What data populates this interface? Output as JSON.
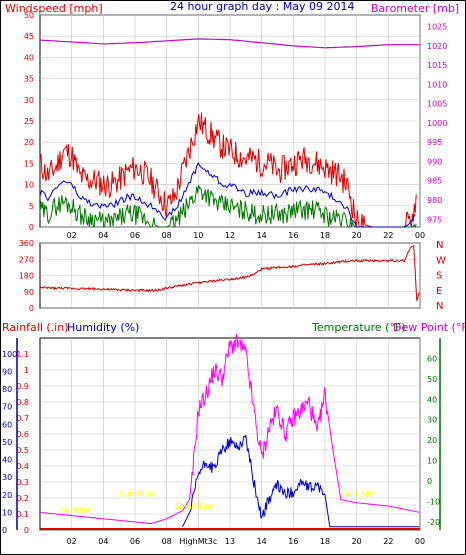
{
  "colors": {
    "background": "#ffffff",
    "plot_bg": "#ffffff",
    "grid": "#c8c8c8",
    "frame": "#000000",
    "windspeed": "#dd0000",
    "avg_wind": "#0000cc",
    "wind_low": "#007700",
    "barometer": "#cc00cc",
    "direction": "#cc0000",
    "rainfall_axis": "#0000aa",
    "humidity_axis": "#0000aa",
    "temperature_axis": "#007700",
    "dewpoint_axis": "#cc00cc",
    "temp_line": "#0000cc",
    "dewpoint_line": "#ff00ff",
    "sun_labels": "#ffff00",
    "title": "#0000aa"
  },
  "chart_data": [
    {
      "type": "line",
      "id": "wind-barometer",
      "title": "24 hour graph day : May 09 2014",
      "left_label": "Windspeed [mph]",
      "right_label": "Barometer [mb]",
      "x_ticks": [
        "02",
        "04",
        "06",
        "08",
        "10",
        "12",
        "14",
        "16",
        "18",
        "20",
        "22",
        "00"
      ],
      "x_range_hours": [
        0,
        24
      ],
      "y_left_ticks": [
        0,
        5,
        10,
        15,
        20,
        25,
        30,
        35,
        40,
        45,
        50
      ],
      "y_left_range": [
        0,
        50
      ],
      "y_right_ticks": [
        975,
        980,
        985,
        990,
        995,
        1000,
        1005,
        1010,
        1015,
        1020,
        1025
      ],
      "y_right_range": [
        973,
        1028
      ],
      "series": [
        {
          "name": "gust",
          "x": [
            0,
            0.5,
            1,
            1.5,
            2,
            2.5,
            3,
            3.5,
            4,
            4.5,
            5,
            5.5,
            6,
            6.5,
            7,
            7.5,
            8,
            8.5,
            9,
            9.5,
            10,
            10.5,
            11,
            11.5,
            12,
            12.5,
            13,
            13.5,
            14,
            14.5,
            15,
            15.5,
            16,
            16.5,
            17,
            17.5,
            18,
            18.5,
            19,
            19.5,
            20,
            21,
            22,
            23,
            23.5,
            23.8
          ],
          "values": [
            15,
            12,
            14,
            18,
            17,
            12,
            11,
            11,
            10,
            10,
            11,
            13,
            14,
            13,
            11,
            8,
            5,
            7,
            13,
            19,
            25,
            23,
            21,
            19,
            18,
            17,
            16,
            16,
            15,
            15,
            13,
            14,
            15,
            16,
            16,
            15,
            14,
            13,
            12,
            9,
            1,
            0,
            0,
            0,
            2,
            8
          ]
        },
        {
          "name": "average",
          "x": [
            0,
            0.5,
            1,
            1.5,
            2,
            2.5,
            3,
            3.5,
            4,
            4.5,
            5,
            5.5,
            6,
            6.5,
            7,
            7.5,
            8,
            8.5,
            9,
            9.5,
            10,
            10.5,
            11,
            11.5,
            12,
            12.5,
            13,
            13.5,
            14,
            14.5,
            15,
            15.5,
            16,
            16.5,
            17,
            17.5,
            18,
            18.5,
            19,
            19.5,
            20,
            21,
            22,
            23,
            23.5,
            23.8
          ],
          "values": [
            8,
            7,
            9,
            11,
            10,
            7,
            6,
            5,
            5,
            5,
            6,
            7,
            7,
            6,
            5,
            4,
            2,
            4,
            7,
            11,
            15,
            13,
            12,
            10,
            10,
            9,
            8,
            8,
            8,
            8,
            7,
            8,
            9,
            9,
            9,
            9,
            8,
            7,
            6,
            4,
            0,
            0,
            0,
            0,
            1,
            4
          ]
        },
        {
          "name": "lull",
          "x": [
            0,
            0.5,
            1,
            1.5,
            2,
            2.5,
            3,
            3.5,
            4,
            4.5,
            5,
            5.5,
            6,
            6.5,
            7,
            7.5,
            8,
            8.5,
            9,
            9.5,
            10,
            10.5,
            11,
            11.5,
            12,
            12.5,
            13,
            13.5,
            14,
            14.5,
            15,
            15.5,
            16,
            16.5,
            17,
            17.5,
            18,
            18.5,
            19,
            19.5,
            20,
            21,
            22,
            23,
            23.5,
            23.8
          ],
          "values": [
            4,
            3,
            5,
            6,
            5,
            3,
            2,
            2,
            1,
            1,
            2,
            3,
            3,
            2,
            1,
            0,
            0,
            1,
            3,
            6,
            9,
            8,
            6,
            5,
            5,
            4,
            4,
            3,
            3,
            3,
            3,
            3,
            4,
            4,
            4,
            4,
            3,
            2,
            2,
            1,
            0,
            0,
            0,
            0,
            0,
            1
          ]
        },
        {
          "name": "barometer",
          "axis": "right",
          "x": [
            0,
            2,
            4,
            6,
            8,
            10,
            12,
            14,
            16,
            18,
            20,
            22,
            24
          ],
          "values": [
            1021.5,
            1021.0,
            1020.5,
            1020.8,
            1021.3,
            1021.8,
            1021.6,
            1020.8,
            1020.0,
            1019.5,
            1019.8,
            1020.3,
            1020.3
          ]
        }
      ]
    },
    {
      "type": "line",
      "id": "wind-direction",
      "x_ticks": [
        "02",
        "04",
        "06",
        "08",
        "10",
        "12",
        "14",
        "16",
        "18",
        "20",
        "22",
        "00"
      ],
      "x_range_hours": [
        0,
        24
      ],
      "y_left_ticks": [
        0,
        90,
        180,
        270,
        360
      ],
      "y_left_range": [
        0,
        360
      ],
      "y_right_ticks": [
        "N",
        "W",
        "S",
        "E",
        "N"
      ],
      "series": [
        {
          "name": "direction",
          "x": [
            0,
            1,
            2,
            3,
            4,
            5,
            6,
            7,
            7.5,
            8,
            9,
            10,
            11,
            12,
            13,
            13.5,
            14,
            15,
            16,
            17,
            18,
            19,
            19.5,
            20,
            21,
            22,
            23,
            23.4,
            23.6,
            23.8,
            24
          ],
          "values": [
            112,
            110,
            108,
            107,
            104,
            100,
            98,
            96,
            100,
            110,
            125,
            140,
            150,
            160,
            170,
            185,
            215,
            225,
            230,
            240,
            245,
            255,
            260,
            262,
            262,
            262,
            262,
            335,
            345,
            40,
            100
          ]
        }
      ]
    },
    {
      "type": "line",
      "id": "rain-humidity-temp",
      "labels": {
        "rainfall": "Rainfall (.in)",
        "humidity": "Humidity (%)",
        "temperature": "Temperature (°F)",
        "dewpoint": "Dew Point (°F)"
      },
      "x_ticks": [
        "02",
        "04",
        "06",
        "08",
        "HighMt3c",
        "13",
        "14",
        "16",
        "18",
        "20",
        "22",
        "00"
      ],
      "x_range_hours": [
        0,
        24
      ],
      "y_rain_ticks": [
        0,
        0.1,
        0.2,
        0.3,
        0.4,
        0.5,
        0.6,
        0.7,
        0.8,
        0.9,
        1,
        1.1
      ],
      "y_rain_range": [
        0,
        1.2
      ],
      "y_humidity_ticks": [
        0,
        10,
        20,
        30,
        40,
        50,
        60,
        70,
        80,
        90,
        100
      ],
      "y_humidity_range": [
        0,
        109
      ],
      "y_temp_ticks": [
        -20,
        -10,
        0,
        10,
        20,
        30,
        40,
        50,
        60
      ],
      "y_temp_range": [
        -24,
        70
      ],
      "annotations": [
        {
          "text": "Sunrise",
          "x": 1.3,
          "y": 0.11
        },
        {
          "text": "Sun Rise",
          "x": 5.0,
          "y": 0.21
        },
        {
          "text": "Solar Rise",
          "x": 8.5,
          "y": 0.13
        },
        {
          "text": "Sun Set",
          "x": 19.1,
          "y": 0.21
        }
      ],
      "series": [
        {
          "name": "dewpoint",
          "axis": "rain",
          "x": [
            0,
            2,
            4,
            6,
            7,
            8,
            9,
            9.5,
            10,
            10.5,
            11,
            11.5,
            12,
            12.5,
            13,
            13.5,
            14,
            14.5,
            15,
            15.5,
            16,
            16.5,
            17,
            17.5,
            18,
            18.5,
            19,
            20,
            22,
            24
          ],
          "values": [
            0.11,
            0.09,
            0.07,
            0.05,
            0.04,
            0.07,
            0.12,
            0.2,
            0.75,
            0.85,
            1.0,
            0.95,
            1.15,
            1.17,
            1.1,
            0.75,
            0.45,
            0.65,
            0.75,
            0.6,
            0.7,
            0.75,
            0.8,
            0.6,
            0.85,
            0.5,
            0.19,
            0.17,
            0.15,
            0.11
          ]
        },
        {
          "name": "temperature",
          "axis": "rain",
          "x": [
            9,
            9.5,
            10,
            10.5,
            11,
            11.5,
            12,
            12.5,
            13,
            13.5,
            14,
            14.5,
            15,
            15.5,
            16,
            16.5,
            17,
            17.5,
            18,
            18.3,
            24
          ],
          "values": [
            0.02,
            0.12,
            0.35,
            0.42,
            0.38,
            0.5,
            0.55,
            0.52,
            0.58,
            0.3,
            0.08,
            0.2,
            0.28,
            0.22,
            0.24,
            0.3,
            0.26,
            0.28,
            0.22,
            0.02,
            0.02
          ]
        },
        {
          "name": "rainfall",
          "axis": "rain",
          "x": [
            0,
            24
          ],
          "values": [
            0,
            0
          ]
        }
      ]
    }
  ]
}
